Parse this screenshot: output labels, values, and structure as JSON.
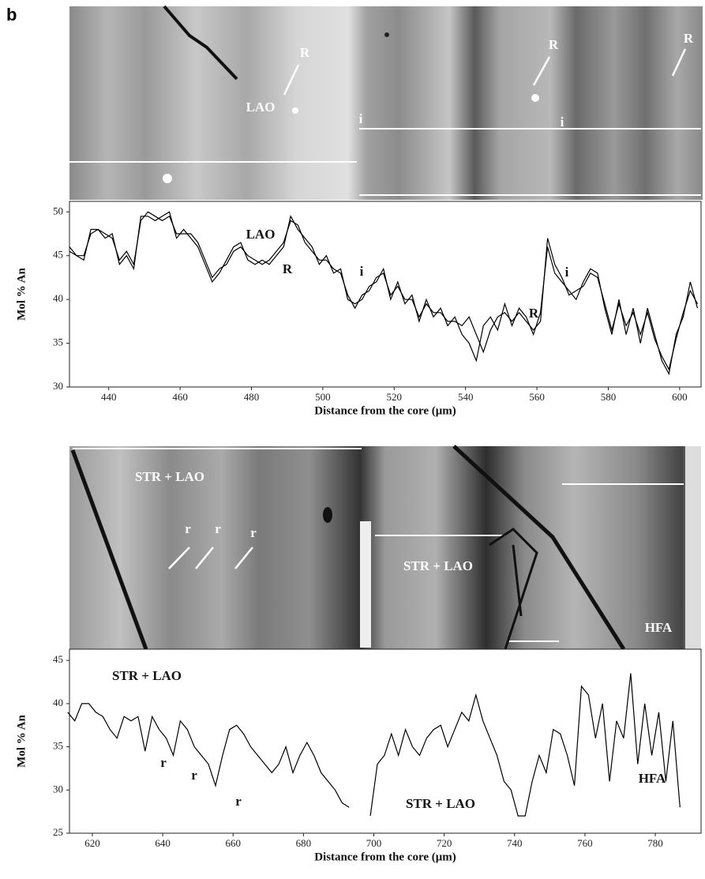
{
  "panel_label": "b",
  "chart_data": [
    {
      "type": "line",
      "xlabel": "Distance from the core (μm)",
      "ylabel": "Mol % An",
      "x": [
        429,
        431,
        433,
        435,
        437,
        439,
        441,
        443,
        445,
        447,
        449,
        451,
        453,
        455,
        457,
        459,
        461,
        463,
        465,
        467,
        469,
        471,
        473,
        475,
        477,
        479,
        481,
        483,
        485,
        487,
        489,
        491,
        493,
        495,
        497,
        499,
        501,
        503,
        505,
        507,
        509,
        511,
        513,
        515,
        517,
        519,
        521,
        523,
        525,
        527,
        529,
        531,
        533,
        535,
        537,
        539,
        541,
        543,
        545,
        547,
        549,
        551,
        553,
        555,
        557,
        559,
        561,
        563,
        565,
        567,
        569,
        571,
        573,
        575,
        577,
        579,
        581,
        583,
        585,
        587,
        589,
        591,
        593,
        595,
        597,
        599,
        601,
        603,
        605
      ],
      "series": [
        {
          "color": "#000000",
          "values": [
            46,
            45,
            44.5,
            48,
            48,
            47,
            47.5,
            44,
            45,
            43.5,
            49.5,
            49.5,
            49,
            49.5,
            50,
            47,
            48,
            47,
            46,
            44,
            42,
            43,
            44.5,
            46,
            46.5,
            44.5,
            44,
            44.5,
            44,
            45,
            46,
            49.5,
            48,
            47,
            46,
            44,
            45,
            43,
            43.5,
            40,
            39.5,
            40,
            41.5,
            42,
            43.5,
            40,
            42,
            39.5,
            40.5,
            37.5,
            40,
            38,
            39,
            37,
            38,
            36,
            35,
            33,
            37,
            38,
            36.5,
            39.5,
            37,
            39,
            38,
            36,
            38.5,
            46,
            43,
            42,
            41,
            40,
            42,
            43.5,
            43,
            39,
            36,
            40,
            36,
            39,
            35,
            39,
            36,
            33,
            31.5,
            36,
            38,
            42,
            39
          ]
        },
        {
          "color": "#000000",
          "values": [
            45.5,
            45,
            45,
            47.5,
            48,
            47.5,
            47,
            44.5,
            45.5,
            44,
            49,
            50,
            49.5,
            49,
            49.5,
            47.5,
            47.5,
            47.5,
            46.5,
            44.5,
            42.5,
            43.5,
            44,
            45.5,
            46,
            45,
            44.5,
            44,
            44.5,
            45.5,
            46.5,
            49,
            48.5,
            46.5,
            45.5,
            44.5,
            44.5,
            43.5,
            43,
            40.5,
            39,
            40.5,
            41,
            42.5,
            43,
            40.5,
            41.5,
            40,
            40,
            38,
            39.5,
            38.5,
            38.5,
            37.5,
            37.5,
            37,
            38,
            36,
            34,
            36.5,
            38,
            38.5,
            37.5,
            38.5,
            37.5,
            36.5,
            37.5,
            47,
            44,
            42.5,
            40.5,
            41,
            41.5,
            43,
            42.5,
            39.5,
            36.5,
            39.5,
            37,
            38.5,
            36,
            38.5,
            35.5,
            33.5,
            32,
            35.5,
            38.5,
            41,
            39.5
          ]
        }
      ],
      "xlim": [
        429,
        606
      ],
      "xticks": [
        440,
        460,
        480,
        500,
        520,
        540,
        560,
        580,
        600
      ],
      "ylim": [
        30,
        51.2
      ],
      "yticks": [
        30,
        35,
        40,
        45,
        50
      ],
      "annotations": [
        "LAO",
        "R",
        "i",
        "R",
        "i"
      ],
      "image_labels": [
        "R",
        "LAO",
        "R",
        "R",
        "i",
        "i"
      ]
    },
    {
      "type": "line",
      "xlabel": "Distance from the core (μm)",
      "ylabel": "Mol % An",
      "x": [
        613,
        615,
        617,
        619,
        621,
        623,
        625,
        627,
        629,
        631,
        633,
        635,
        637,
        639,
        641,
        643,
        645,
        647,
        649,
        651,
        653,
        655,
        657,
        659,
        661,
        663,
        665,
        667,
        669,
        671,
        673,
        675,
        677,
        679,
        681,
        683,
        685,
        687,
        689,
        691,
        693,
        695,
        697,
        699,
        701,
        703,
        705,
        707,
        709,
        711,
        713,
        715,
        717,
        719,
        721,
        723,
        725,
        727,
        729,
        731,
        733,
        735,
        737,
        739,
        741,
        743,
        745,
        747,
        749,
        751,
        753,
        755,
        757,
        759,
        761,
        763,
        765,
        767,
        769,
        771,
        773,
        775,
        777,
        779,
        781,
        783,
        785,
        787
      ],
      "series": [
        {
          "color": "#000000",
          "values": [
            39,
            38,
            40,
            40,
            39,
            38.5,
            37,
            36,
            38.5,
            38,
            38.5,
            34.5,
            38.5,
            37,
            36,
            34,
            38,
            37,
            35,
            34,
            33,
            30.5,
            34,
            37,
            37.5,
            36.5,
            35,
            34,
            33,
            32,
            33,
            35,
            32,
            34,
            35.5,
            34,
            32,
            31,
            30,
            28.5,
            28,
            null,
            null,
            27,
            33,
            34,
            36.5,
            34,
            37,
            35,
            34,
            36,
            37,
            37.5,
            35,
            37,
            39,
            38,
            41,
            38,
            36,
            34,
            31,
            30,
            27,
            27,
            31,
            34,
            32,
            37,
            36.5,
            34,
            30.5,
            42,
            41,
            36,
            40,
            31,
            38,
            36,
            43.5,
            33,
            40,
            34,
            39,
            31,
            38,
            28
          ]
        }
      ],
      "xlim": [
        613.5,
        793
      ],
      "xticks": [
        620,
        640,
        660,
        680,
        700,
        720,
        740,
        760,
        780
      ],
      "ylim": [
        25,
        46.3
      ],
      "yticks": [
        25,
        30,
        35,
        40,
        45
      ],
      "annotations": [
        "STR + LAO",
        "r",
        "r",
        "r",
        "STR + LAO",
        "HFA"
      ],
      "image_labels": [
        "STR + LAO",
        "r",
        "r",
        "r",
        "STR + LAO",
        "HFA"
      ]
    }
  ]
}
